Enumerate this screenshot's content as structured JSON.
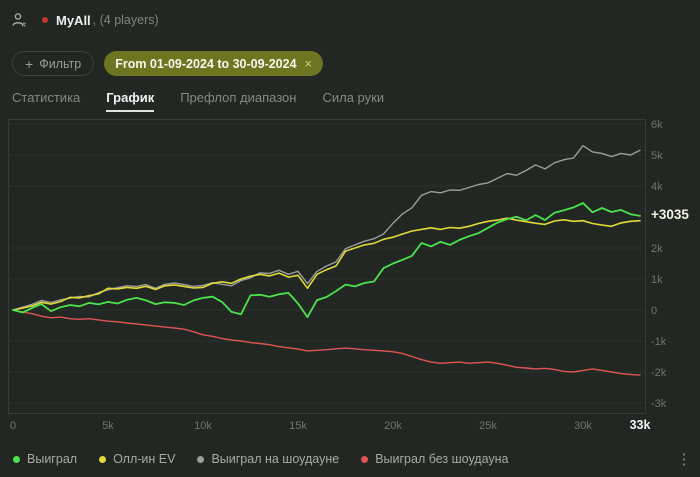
{
  "header": {
    "player_name": "MyAll",
    "players_suffix": ", (4 players)",
    "marker_color": "#c0392b",
    "player_icon": "person-hash-icon"
  },
  "filter": {
    "plus_icon": "+",
    "button_label": "Фильтр",
    "tag_label": "From 01-09-2024 to 30-09-2024",
    "tag_close_icon": "×",
    "tag_bg": "#6f7420"
  },
  "tabs": [
    {
      "label": "Статистика",
      "active": false
    },
    {
      "label": "График",
      "active": true
    },
    {
      "label": "Префлоп диапазон",
      "active": false
    },
    {
      "label": "Сила руки",
      "active": false
    }
  ],
  "chart_data": {
    "type": "line",
    "x_unit": "hands",
    "xlim": [
      0,
      33000
    ],
    "ylim": [
      -3000,
      6000
    ],
    "grid": "horizontal",
    "legend_position": "bottom",
    "current_value": 3035,
    "current_value_label": "+3035",
    "x_ticks": [
      {
        "label": "0",
        "value": 0,
        "emphasis": false
      },
      {
        "label": "5k",
        "value": 5000,
        "emphasis": false
      },
      {
        "label": "10k",
        "value": 10000,
        "emphasis": false
      },
      {
        "label": "15k",
        "value": 15000,
        "emphasis": false
      },
      {
        "label": "20k",
        "value": 20000,
        "emphasis": false
      },
      {
        "label": "25k",
        "value": 25000,
        "emphasis": false
      },
      {
        "label": "30k",
        "value": 30000,
        "emphasis": false
      },
      {
        "label": "33k",
        "value": 33000,
        "emphasis": true
      }
    ],
    "y_ticks": [
      {
        "label": "6k",
        "value": 6000
      },
      {
        "label": "5k",
        "value": 5000
      },
      {
        "label": "4k",
        "value": 4000
      },
      {
        "label": "2k",
        "value": 2000
      },
      {
        "label": "1k",
        "value": 1000
      },
      {
        "label": "0",
        "value": 0
      },
      {
        "label": "-1k",
        "value": -1000
      },
      {
        "label": "-2k",
        "value": -2000
      },
      {
        "label": "-3k",
        "value": -3000
      }
    ],
    "x_step": 500,
    "series": [
      {
        "name": "Выиграл",
        "color": "#4ce24c",
        "width": 1.8,
        "y": [
          0,
          -80,
          60,
          190,
          -40,
          90,
          160,
          120,
          230,
          180,
          260,
          210,
          330,
          390,
          310,
          190,
          250,
          230,
          160,
          310,
          390,
          430,
          260,
          -60,
          -140,
          470,
          490,
          430,
          510,
          550,
          210,
          -230,
          320,
          420,
          610,
          820,
          760,
          870,
          920,
          1350,
          1500,
          1620,
          1750,
          2160,
          2050,
          2200,
          2100,
          2260,
          2380,
          2480,
          2650,
          2820,
          2930,
          3010,
          2890,
          3060,
          2900,
          3140,
          3220,
          3310,
          3450,
          3150,
          3290,
          3160,
          3230,
          3090,
          3035
        ]
      },
      {
        "name": "Олл-ин EV",
        "color": "#e0d938",
        "width": 1.6,
        "y": [
          0,
          60,
          130,
          250,
          190,
          270,
          410,
          390,
          460,
          520,
          700,
          680,
          730,
          700,
          760,
          660,
          780,
          810,
          760,
          710,
          730,
          860,
          910,
          860,
          1000,
          1090,
          1150,
          1100,
          1190,
          1060,
          1120,
          700,
          1150,
          1300,
          1420,
          1900,
          2000,
          2100,
          2150,
          2280,
          2350,
          2450,
          2550,
          2600,
          2650,
          2600,
          2660,
          2640,
          2700,
          2790,
          2860,
          2900,
          2960,
          2900,
          2850,
          2800,
          2760,
          2870,
          2910,
          2860,
          2880,
          2790,
          2740,
          2700,
          2810,
          2860,
          2880
        ]
      },
      {
        "name": "Выиграл на шоудауне",
        "color": "#9c9c99",
        "width": 1.4,
        "y": [
          0,
          90,
          180,
          310,
          240,
          330,
          380,
          440,
          420,
          560,
          650,
          720,
          780,
          760,
          820,
          700,
          830,
          870,
          820,
          760,
          790,
          880,
          830,
          780,
          950,
          1040,
          1200,
          1180,
          1280,
          1150,
          1250,
          850,
          1250,
          1420,
          1550,
          1980,
          2100,
          2220,
          2300,
          2450,
          2800,
          3100,
          3300,
          3700,
          3820,
          3780,
          3870,
          3860,
          3950,
          4050,
          4100,
          4250,
          4400,
          4350,
          4500,
          4680,
          4550,
          4750,
          4850,
          4900,
          5300,
          5100,
          5050,
          4950,
          5050,
          5000,
          5150
        ]
      },
      {
        "name": "Выиграл без шоудауна",
        "color": "#e05454",
        "width": 1.4,
        "y": [
          0,
          -60,
          -120,
          -200,
          -250,
          -230,
          -280,
          -300,
          -280,
          -320,
          -360,
          -380,
          -420,
          -450,
          -480,
          -520,
          -550,
          -580,
          -620,
          -700,
          -800,
          -850,
          -920,
          -970,
          -1000,
          -1050,
          -1080,
          -1120,
          -1180,
          -1220,
          -1260,
          -1320,
          -1300,
          -1280,
          -1250,
          -1230,
          -1250,
          -1280,
          -1300,
          -1320,
          -1350,
          -1400,
          -1500,
          -1600,
          -1680,
          -1720,
          -1700,
          -1680,
          -1720,
          -1700,
          -1680,
          -1720,
          -1780,
          -1850,
          -1870,
          -1900,
          -1880,
          -1920,
          -1980,
          -2000,
          -1950,
          -1900,
          -1950,
          -2000,
          -2050,
          -2080,
          -2100
        ]
      }
    ]
  },
  "menu_icon": "kebab-menu-icon"
}
